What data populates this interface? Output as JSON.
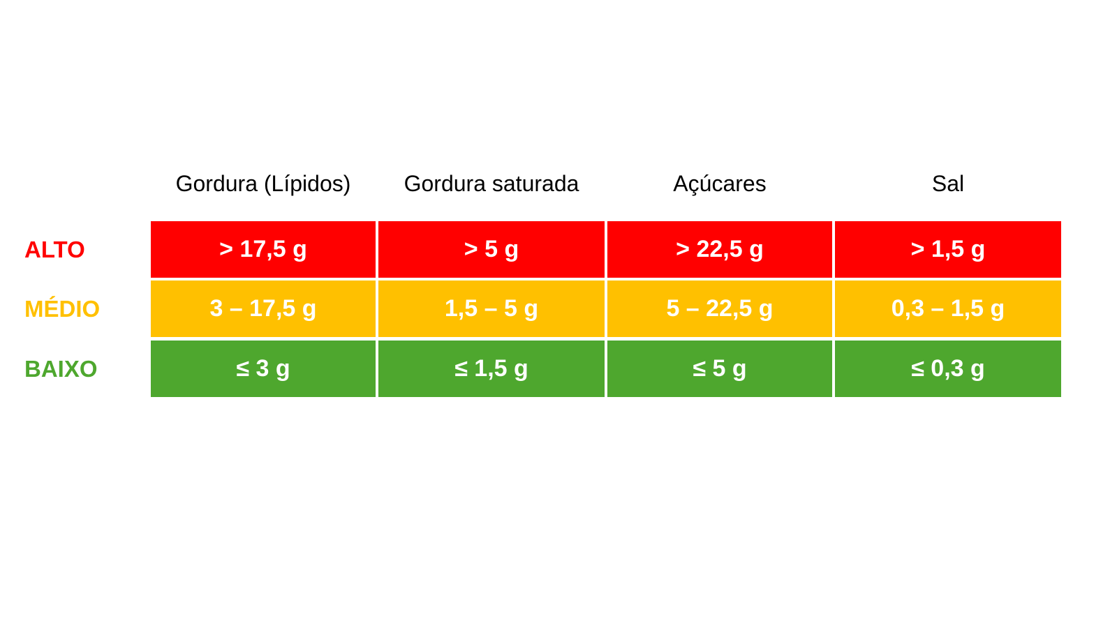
{
  "table": {
    "columns": [
      "Gordura (Lípidos)",
      "Gordura saturada",
      "Açúcares",
      "Sal"
    ],
    "rows": [
      {
        "label": "ALTO",
        "color": "#FF0000",
        "cells": [
          "> 17,5 g",
          "> 5 g",
          "> 22,5 g",
          "> 1,5 g"
        ]
      },
      {
        "label": "MÉDIO",
        "color": "#FFC000",
        "cells": [
          "3 – 17,5 g",
          "1,5 – 5 g",
          "5 – 22,5 g",
          "0,3 – 1,5 g"
        ]
      },
      {
        "label": "BAIXO",
        "color": "#4EA72E",
        "cells": [
          "≤ 3 g",
          "≤ 1,5 g",
          "≤ 5 g",
          "≤ 0,3 g"
        ]
      }
    ]
  }
}
